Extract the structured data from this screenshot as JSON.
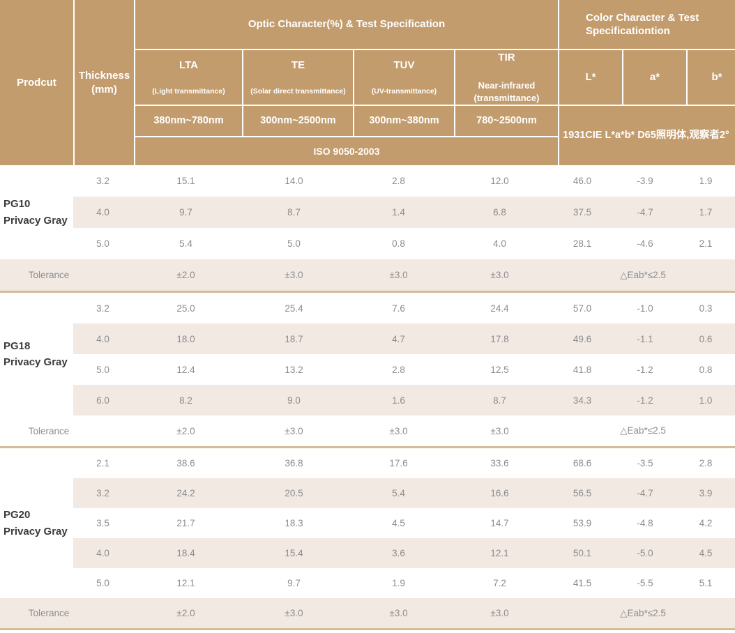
{
  "header": {
    "product_label": "Prodcut",
    "thickness_label": "Thickness\n(mm)",
    "optic_banner": "Optic Character(%) & Test Specification",
    "color_banner": "Color Character & Test\nSpecificationtion",
    "optic_columns": [
      {
        "abbr": "LTA",
        "desc": "(Light transmittance)",
        "range": "380nm~780nm"
      },
      {
        "abbr": "TE",
        "desc": "(Solar direct transmittance)",
        "range": "300nm~2500nm"
      },
      {
        "abbr": "TUV",
        "desc": "(UV-transmittance)",
        "range": "300nm~380nm"
      },
      {
        "abbr": "TIR",
        "desc": "Near-infrared\n(transmittance)",
        "range": "780~2500nm"
      }
    ],
    "color_columns": [
      "L*",
      "a*",
      "b*"
    ],
    "iso_standard": "ISO 9050-2003",
    "cie_standard": "1931CIE L*a*b*  D65照明体,观察者2°"
  },
  "colors": {
    "header_tan": "#c39c6e",
    "row_shade": "#f2e9e3",
    "divider_tan": "#d5bc98",
    "value_gray": "#8c8c8c",
    "product_dark": "#3b3b3b"
  },
  "sections": [
    {
      "product": "PG10\nPrivacy Gray",
      "rows": [
        {
          "thickness": "3.2",
          "values": [
            "15.1",
            "14.0",
            "2.8",
            "12.0",
            "46.0",
            "-3.9",
            "1.9"
          ]
        },
        {
          "thickness": "4.0",
          "values": [
            "9.7",
            "8.7",
            "1.4",
            "6.8",
            "37.5",
            "-4.7",
            "1.7"
          ]
        },
        {
          "thickness": "5.0",
          "values": [
            "5.4",
            "5.0",
            "0.8",
            "4.0",
            "28.1",
            "-4.6",
            "2.1"
          ]
        }
      ],
      "tolerance": {
        "label": "Tolerance",
        "lta": "±2.0",
        "te": "±3.0",
        "tuv": "±3.0",
        "tir": "±3.0",
        "color": "△Eab*≤2.5"
      }
    },
    {
      "product": "PG18\nPrivacy Gray",
      "rows": [
        {
          "thickness": "3.2",
          "values": [
            "25.0",
            "25.4",
            "7.6",
            "24.4",
            "57.0",
            "-1.0",
            "0.3"
          ]
        },
        {
          "thickness": "4.0",
          "values": [
            "18.0",
            "18.7",
            "4.7",
            "17.8",
            "49.6",
            "-1.1",
            "0.6"
          ]
        },
        {
          "thickness": "5.0",
          "values": [
            "12.4",
            "13.2",
            "2.8",
            "12.5",
            "41.8",
            "-1.2",
            "0.8"
          ]
        },
        {
          "thickness": "6.0",
          "values": [
            "8.2",
            "9.0",
            "1.6",
            "8.7",
            "34.3",
            "-1.2",
            "1.0"
          ]
        }
      ],
      "tolerance": {
        "label": "Tolerance",
        "lta": "±2.0",
        "te": "±3.0",
        "tuv": "±3.0",
        "tir": "±3.0",
        "color": "△Eab*≤2.5"
      }
    },
    {
      "product": "PG20\nPrivacy Gray",
      "rows": [
        {
          "thickness": "2.1",
          "values": [
            "38.6",
            "36.8",
            "17.6",
            "33.6",
            "68.6",
            "-3.5",
            "2.8"
          ]
        },
        {
          "thickness": "3.2",
          "values": [
            "24.2",
            "20.5",
            "5.4",
            "16.6",
            "56.5",
            "-4.7",
            "3.9"
          ]
        },
        {
          "thickness": "3.5",
          "values": [
            "21.7",
            "18.3",
            "4.5",
            "14.7",
            "53.9",
            "-4.8",
            "4.2"
          ]
        },
        {
          "thickness": "4.0",
          "values": [
            "18.4",
            "15.4",
            "3.6",
            "12.1",
            "50.1",
            "-5.0",
            "4.5"
          ]
        },
        {
          "thickness": "5.0",
          "values": [
            "12.1",
            "9.7",
            "1.9",
            "7.2",
            "41.5",
            "-5.5",
            "5.1"
          ]
        }
      ],
      "tolerance": {
        "label": "Tolerance",
        "lta": "±2.0",
        "te": "±3.0",
        "tuv": "±3.0",
        "tir": "±3.0",
        "color": "△Eab*≤2.5"
      }
    }
  ]
}
